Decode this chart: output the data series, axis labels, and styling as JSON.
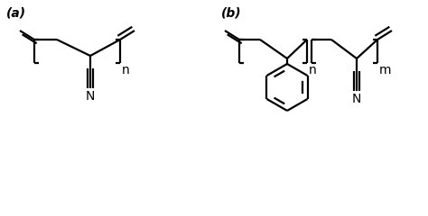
{
  "bg_color": "#ffffff",
  "line_color": "#000000",
  "line_width": 1.6,
  "font_size": 10,
  "label_a": "(a)",
  "label_b": "(b)",
  "subscript_n": "n",
  "subscript_m": "m",
  "atom_N": "N"
}
